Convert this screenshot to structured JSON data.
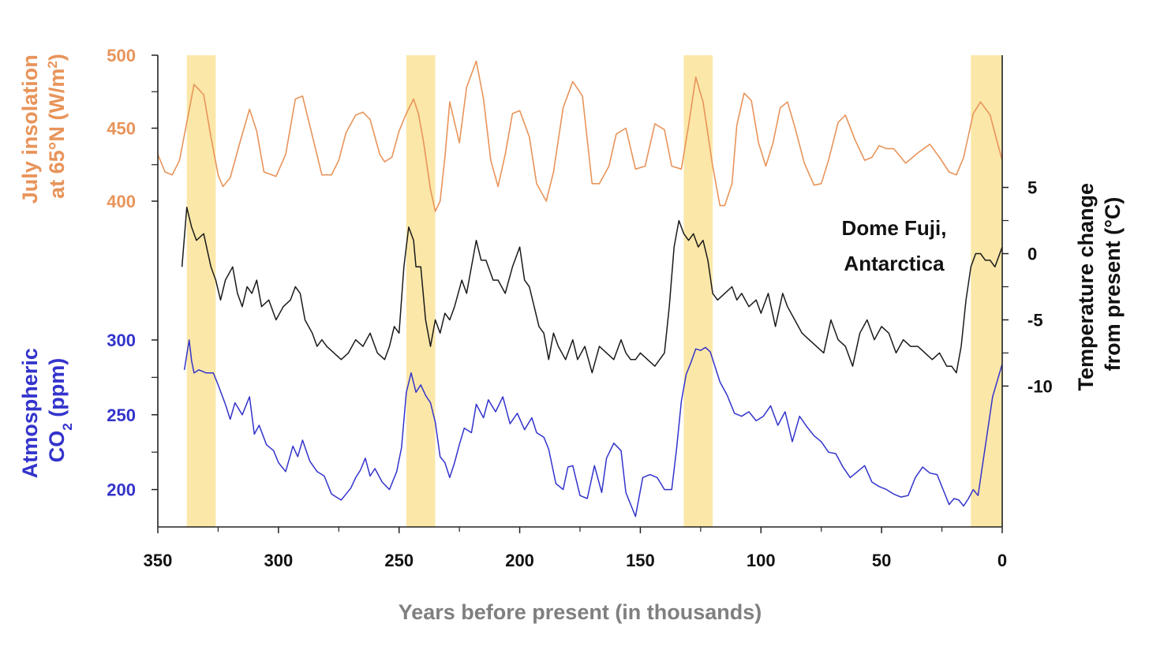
{
  "colors": {
    "insolation": "#E8945A",
    "temperature": "#1a1a1a",
    "co2": "#3333CC",
    "interglacial": "#FBE7A8",
    "axis": "#222222",
    "xtitle": "#7f7f7f"
  },
  "chart_data": {
    "type": "line",
    "xlabel": "Years before present (in thousands)",
    "xlim": [
      350,
      0
    ],
    "xticks": [
      350,
      300,
      250,
      200,
      150,
      100,
      50,
      0
    ],
    "interglacials": [
      [
        338,
        326
      ],
      [
        247,
        235
      ],
      [
        132,
        120
      ],
      [
        13,
        0
      ]
    ],
    "annotation": {
      "line1": "Dome Fuji,",
      "line2": "Antarctica"
    },
    "series": [
      {
        "key": "insolation",
        "axis_title_line1": "July insolation",
        "axis_title_line2_pre": "at 65°N (W/m",
        "axis_title_sup": "2",
        "axis_title_line2_post": ")",
        "ylim": [
          400,
          500
        ],
        "yticks": [
          400,
          450,
          500
        ],
        "x": [
          350,
          347,
          344,
          341,
          335,
          331,
          328,
          325,
          323,
          320,
          316,
          312,
          309,
          306,
          301,
          297,
          293,
          290,
          286,
          282,
          278,
          275,
          272,
          268,
          265,
          262,
          258,
          256,
          253,
          250,
          247,
          244,
          242,
          240,
          237,
          235,
          233,
          231,
          229,
          225,
          222,
          218,
          215,
          212,
          209,
          206,
          203,
          200,
          196,
          193,
          189,
          186,
          182,
          178,
          174,
          170,
          167,
          163,
          160,
          156,
          152,
          148,
          144,
          140,
          137,
          133,
          130,
          127,
          124,
          120,
          117,
          115,
          112,
          110,
          107,
          104,
          101,
          98,
          95,
          92,
          89,
          86,
          82,
          78,
          75,
          72,
          68,
          65,
          61,
          57,
          54,
          51,
          48,
          45,
          40,
          35,
          30,
          26,
          22,
          19,
          16,
          12,
          9,
          5,
          2,
          0
        ],
        "values": [
          432,
          420,
          418,
          428,
          480,
          473,
          444,
          418,
          410,
          416,
          440,
          463,
          448,
          420,
          417,
          432,
          470,
          472,
          445,
          418,
          418,
          428,
          447,
          459,
          461,
          456,
          432,
          427,
          430,
          448,
          460,
          470,
          460,
          442,
          408,
          393,
          400,
          430,
          468,
          440,
          478,
          496,
          470,
          428,
          410,
          432,
          460,
          462,
          444,
          412,
          400,
          420,
          464,
          482,
          472,
          412,
          412,
          424,
          446,
          450,
          422,
          424,
          453,
          449,
          424,
          422,
          452,
          485,
          468,
          424,
          397,
          397,
          412,
          452,
          474,
          469,
          440,
          424,
          440,
          464,
          468,
          451,
          426,
          411,
          412,
          428,
          454,
          459,
          442,
          428,
          430,
          438,
          436,
          436,
          426,
          433,
          439,
          430,
          420,
          418,
          430,
          460,
          468,
          459,
          440,
          428
        ]
      },
      {
        "key": "temperature",
        "axis_title_line1": "Temperature change",
        "axis_title_line2": "from present (°C)",
        "ylim": [
          -12,
          7
        ],
        "yticks": [
          5,
          0,
          -5,
          -10
        ],
        "ytick_labels": [
          "5",
          "0",
          "-5",
          "-10"
        ],
        "x": [
          340,
          338,
          336,
          334,
          331,
          328,
          326,
          324,
          322,
          319,
          317,
          315,
          313,
          311,
          309,
          307,
          304,
          301,
          298,
          295,
          293,
          291,
          289,
          286,
          284,
          282,
          280,
          277,
          274,
          271,
          268,
          265,
          262,
          259,
          256,
          254,
          252,
          250,
          248,
          246,
          244,
          243,
          241,
          239,
          237,
          235,
          233,
          231,
          229,
          227,
          224,
          222,
          220,
          218,
          216,
          214,
          211,
          209,
          206,
          203,
          200,
          198,
          196,
          194,
          192,
          190,
          188,
          186,
          184,
          181,
          178,
          176,
          173,
          170,
          167,
          164,
          161,
          158,
          156,
          154,
          152,
          150,
          147,
          144,
          142,
          140,
          138,
          136,
          134,
          132,
          130,
          128,
          126,
          124,
          122,
          120,
          118,
          115,
          112,
          110,
          108,
          105,
          102,
          100,
          97,
          94,
          91,
          89,
          86,
          83,
          80,
          77,
          74,
          71,
          68,
          65,
          62,
          59,
          56,
          53,
          50,
          47,
          44,
          41,
          38,
          35,
          32,
          29,
          26,
          23,
          21,
          19,
          17,
          15,
          13,
          11,
          9,
          7,
          5,
          3,
          1,
          0
        ],
        "values": [
          -1,
          3.5,
          2,
          1,
          1.5,
          -1,
          -2,
          -3.5,
          -2,
          -1,
          -3,
          -4,
          -2.5,
          -3,
          -2,
          -4,
          -3.5,
          -5,
          -4,
          -3.5,
          -2.5,
          -3,
          -5,
          -6,
          -7,
          -6.5,
          -7,
          -7.5,
          -8,
          -7.5,
          -6.5,
          -7,
          -6,
          -7.5,
          -8,
          -7,
          -5.5,
          -6,
          -1,
          2,
          1,
          -1,
          -1,
          -5,
          -7,
          -5,
          -6,
          -4.5,
          -5,
          -4,
          -2,
          -3,
          -1,
          1,
          -0.5,
          -0.5,
          -2,
          -2,
          -3,
          -1,
          0.5,
          -2,
          -2.5,
          -4,
          -5.5,
          -6,
          -8,
          -6,
          -7,
          -8,
          -6.5,
          -8,
          -7,
          -9,
          -7,
          -7.5,
          -8,
          -6.5,
          -7.5,
          -8,
          -8,
          -7.5,
          -8,
          -8.5,
          -8,
          -7.5,
          -4,
          0.5,
          2.5,
          1.5,
          1,
          1.5,
          0.5,
          1,
          -0.5,
          -3,
          -3.5,
          -3,
          -2.5,
          -3.5,
          -3,
          -4,
          -3.5,
          -4.5,
          -3,
          -5.5,
          -3,
          -4,
          -5,
          -6,
          -6.5,
          -7,
          -7.5,
          -5,
          -6.5,
          -7,
          -8.5,
          -6,
          -5,
          -6.5,
          -5.5,
          -6,
          -7.5,
          -6.5,
          -7,
          -7,
          -7.5,
          -8,
          -7.5,
          -8.5,
          -8.5,
          -9,
          -7,
          -3.5,
          -1,
          0,
          0,
          -0.5,
          -0.5,
          -1,
          0,
          0.5
        ]
      },
      {
        "key": "co2",
        "axis_title_line1": "Atmospheric",
        "axis_title_line2_pre": "CO",
        "axis_title_sub": "2",
        "axis_title_line2_post": " (ppm)",
        "ylim": [
          175,
          310
        ],
        "yticks": [
          200,
          250,
          300
        ],
        "x": [
          339,
          337,
          336,
          335,
          333,
          330,
          327,
          325,
          322,
          320,
          318,
          315,
          312,
          310,
          308,
          305,
          302,
          300,
          297,
          294,
          292,
          290,
          287,
          284,
          281,
          278,
          276,
          274,
          272,
          270,
          268,
          266,
          264,
          262,
          260,
          257,
          254,
          251,
          249,
          247,
          245,
          243,
          241,
          239,
          237,
          235,
          233,
          231,
          229,
          227,
          225,
          223,
          220,
          218,
          215,
          213,
          210,
          207,
          204,
          201,
          198,
          195,
          193,
          190,
          188,
          185,
          182,
          180,
          178,
          175,
          172,
          169,
          166,
          164,
          161,
          158,
          156,
          154,
          152,
          149,
          146,
          143,
          140,
          137,
          135,
          133,
          131,
          129,
          127,
          125,
          123,
          121,
          119,
          117,
          114,
          111,
          108,
          105,
          102,
          99,
          96,
          93,
          90,
          87,
          84,
          81,
          78,
          75,
          72,
          69,
          66,
          63,
          60,
          57,
          54,
          51,
          48,
          45,
          42,
          39,
          36,
          33,
          30,
          27,
          24,
          22,
          20,
          18,
          16,
          14,
          12,
          10,
          8,
          6,
          4,
          2,
          0
        ],
        "values": [
          280,
          300,
          286,
          278,
          280,
          278,
          278,
          270,
          257,
          247,
          258,
          250,
          262,
          237,
          243,
          230,
          226,
          218,
          212,
          229,
          222,
          233,
          219,
          212,
          209,
          197,
          195,
          193,
          197,
          201,
          208,
          213,
          221,
          209,
          214,
          205,
          200,
          212,
          228,
          265,
          278,
          265,
          270,
          263,
          258,
          245,
          222,
          218,
          208,
          218,
          230,
          241,
          238,
          257,
          248,
          260,
          252,
          262,
          244,
          251,
          240,
          248,
          238,
          235,
          227,
          204,
          200,
          215,
          216,
          196,
          194,
          216,
          198,
          221,
          231,
          226,
          198,
          190,
          182,
          208,
          210,
          208,
          200,
          200,
          227,
          259,
          277,
          285,
          294,
          293,
          295,
          292,
          282,
          272,
          263,
          251,
          249,
          252,
          246,
          249,
          256,
          243,
          252,
          232,
          249,
          242,
          236,
          232,
          225,
          224,
          215,
          208,
          212,
          216,
          205,
          202,
          200,
          197,
          195,
          196,
          208,
          215,
          211,
          210,
          198,
          190,
          194,
          193,
          189,
          194,
          200,
          196,
          218,
          240,
          262,
          273,
          284
        ]
      }
    ]
  }
}
